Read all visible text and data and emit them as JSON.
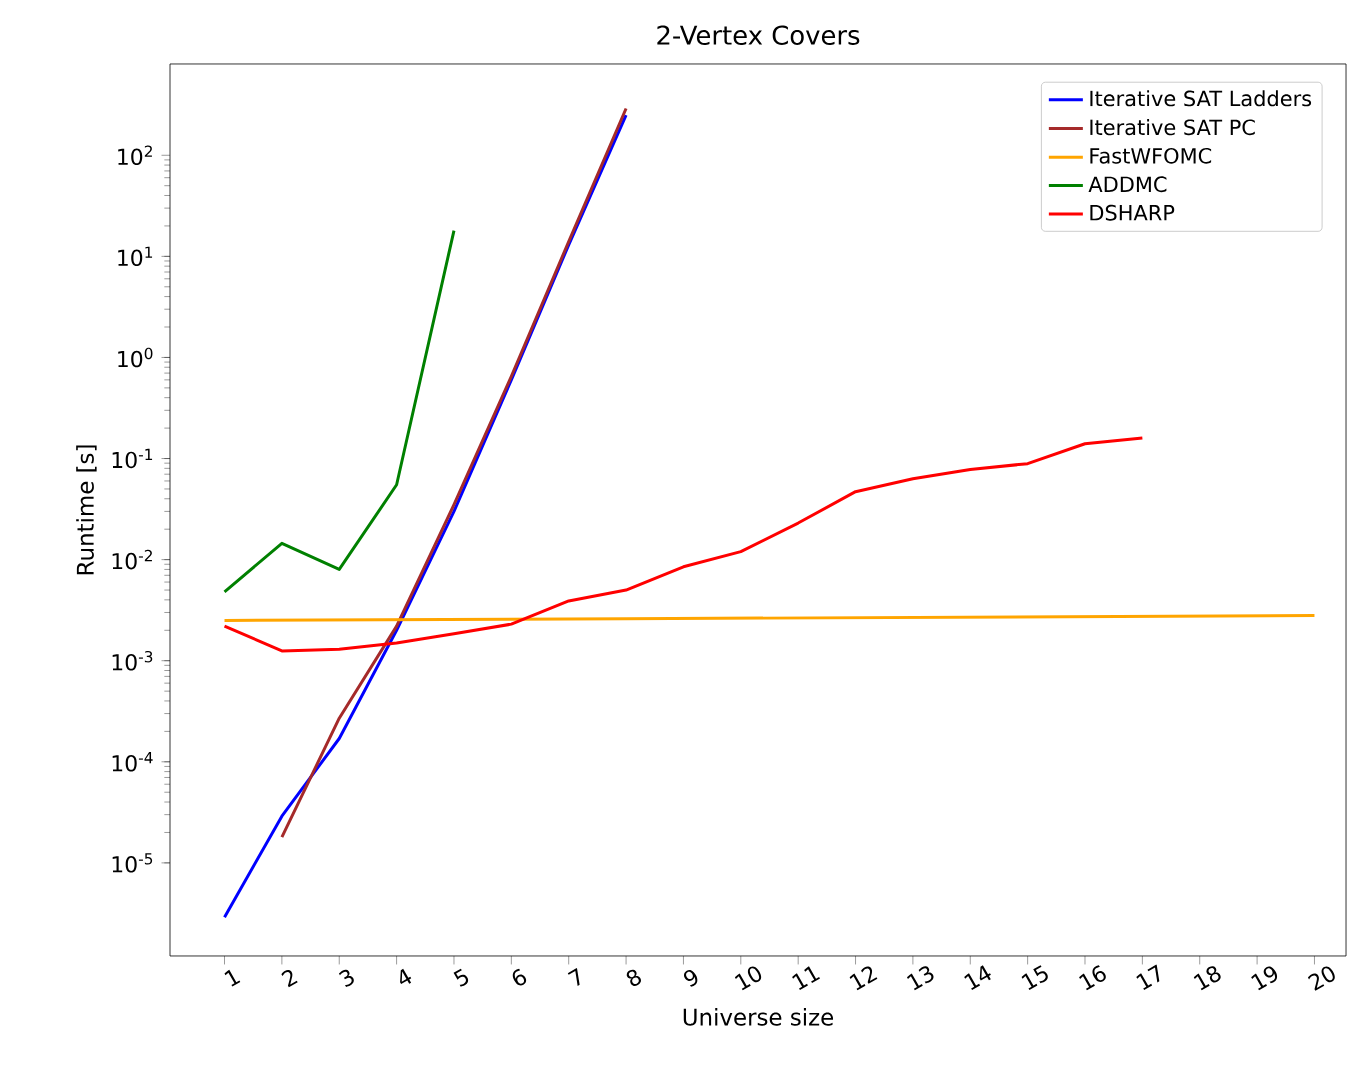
{
  "chart_data": {
    "type": "line",
    "title": "2-Vertex Covers",
    "xlabel": "Universe size",
    "ylabel": "Runtime [s]",
    "log": "y",
    "grid": false,
    "legend": "top right",
    "marker": "none",
    "line_style": "solid",
    "xlim": [
      0.05,
      20.55
    ],
    "xticks": [
      1,
      2,
      3,
      4,
      5,
      6,
      7,
      8,
      9,
      10,
      11,
      12,
      13,
      14,
      15,
      16,
      17,
      18,
      19,
      20
    ],
    "ylim": [
      1.2e-06,
      800
    ],
    "yticks": [
      {
        "value": 1e-05,
        "label": "10$^{-5}$"
      },
      {
        "value": 0.0001,
        "label": "10$^{-4}$"
      },
      {
        "value": 0.001,
        "label": "10$^{-3}$"
      },
      {
        "value": 0.01,
        "label": "10$^{-2}$"
      },
      {
        "value": 0.1,
        "label": "10$^{-1}$"
      },
      {
        "value": 1,
        "label": "10$^{0}$"
      },
      {
        "value": 10,
        "label": "10$^{1}$"
      },
      {
        "value": 100,
        "label": "10$^{2}$"
      }
    ],
    "series": [
      {
        "name": "Iterative SAT Ladders",
        "color": "#0000ff",
        "x": [
          1,
          2,
          3,
          4,
          5,
          6,
          7,
          8
        ],
        "values": [
          2.9e-06,
          2.9e-05,
          0.00017,
          0.002,
          0.03,
          0.6,
          13,
          250
        ]
      },
      {
        "name": "Iterative SAT PC",
        "color": "#a52a2a",
        "x": [
          2,
          3,
          4,
          5,
          6,
          7,
          8
        ],
        "values": [
          1.8e-05,
          0.00027,
          0.0022,
          0.035,
          0.65,
          14,
          290
        ]
      },
      {
        "name": "FastWFOMC",
        "color": "#ffa500",
        "x": [
          1,
          8,
          20
        ],
        "values": [
          0.0025,
          0.0026,
          0.0028
        ]
      },
      {
        "name": "ADDMC",
        "color": "#008000",
        "x": [
          1,
          2,
          3,
          4,
          5
        ],
        "values": [
          0.0048,
          0.0145,
          0.008,
          0.055,
          18
        ]
      },
      {
        "name": "DSHARP",
        "color": "#ff0000",
        "x": [
          1,
          2,
          3,
          4,
          5,
          6,
          7,
          8,
          9,
          10,
          11,
          12,
          13,
          14,
          15,
          16,
          17
        ],
        "values": [
          0.0022,
          0.00125,
          0.0013,
          0.0015,
          0.00185,
          0.0023,
          0.0039,
          0.005,
          0.0085,
          0.012,
          0.023,
          0.047,
          0.063,
          0.078,
          0.089,
          0.14,
          0.16
        ]
      }
    ]
  }
}
